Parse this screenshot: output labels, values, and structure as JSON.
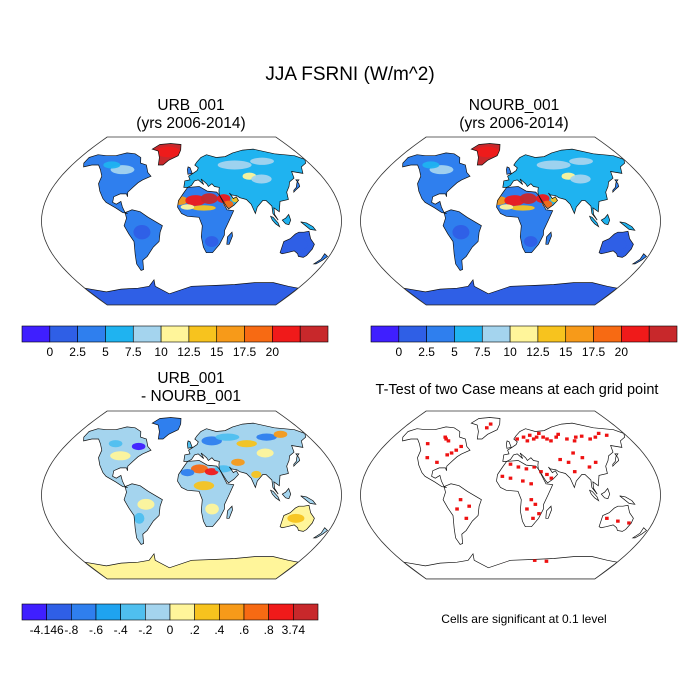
{
  "main_title": "JJA FSRNI (W/m^2)",
  "panels": [
    {
      "title_line1": "URB_001",
      "title_line2": "(yrs 2006-2014)"
    },
    {
      "title_line1": "NOURB_001",
      "title_line2": "(yrs 2006-2014)"
    },
    {
      "title_line1": "URB_001",
      "title_line2": "- NOURB_001"
    },
    {
      "title_line1": "T-Test of two Case means at each grid point",
      "title_line2": ""
    }
  ],
  "colorbar_abs": {
    "colors": [
      "#3f1fff",
      "#2f5fe6",
      "#2f7fee",
      "#1fb3f0",
      "#a4d4ee",
      "#fff59a",
      "#f7c31e",
      "#f79a19",
      "#f76a13",
      "#f01a1a",
      "#c8282b"
    ],
    "labels": [
      "0",
      "2.5",
      "5",
      "7.5",
      "10",
      "12.5",
      "15",
      "17.5",
      "20"
    ]
  },
  "colorbar_diff": {
    "colors": [
      "#3f1fff",
      "#2f5fe6",
      "#2f7fee",
      "#1fa3f0",
      "#4fbfef",
      "#a4d4ee",
      "#fff59a",
      "#f7c31e",
      "#f79a19",
      "#f76a13",
      "#f01a1a",
      "#c8282b"
    ],
    "labels": [
      "-4.146",
      "-.8",
      "-.6",
      "-.4",
      "-.2",
      "0",
      ".2",
      ".4",
      ".6",
      ".8",
      "3.74"
    ]
  },
  "significance_note": "Cells are significant at 0.1 level"
}
